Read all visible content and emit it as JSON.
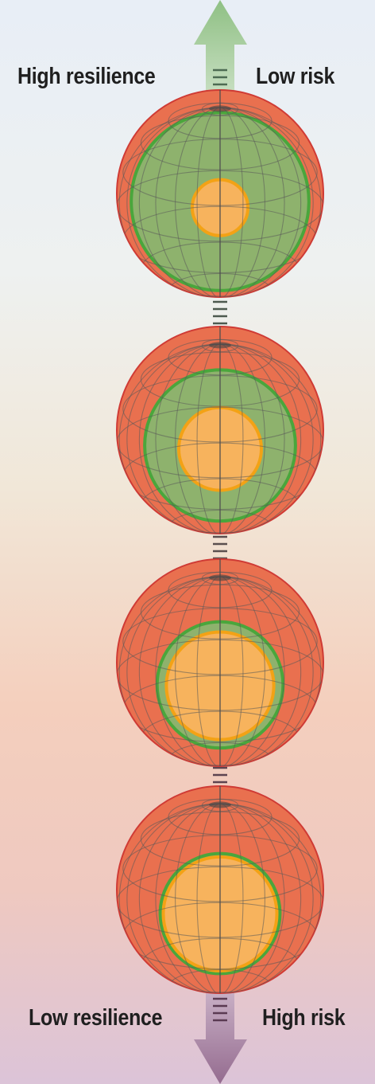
{
  "labels": {
    "top_left": "High resilience",
    "top_right": "Low risk",
    "bottom_left": "Low resilience",
    "bottom_right": "High risk"
  },
  "colors": {
    "risk_red": "#e9704f",
    "risk_red_stroke": "#cf3b35",
    "resilience_green": "#8eb26d",
    "resilience_green_stroke": "#4aa63c",
    "hazard_orange": "#f7b35d",
    "hazard_orange_stroke": "#f3a215",
    "arrow_top": "#94c389",
    "arrow_bottom": "#9b6f95"
  },
  "globes": [
    {
      "name": "globe-1",
      "green_fraction": 0.86,
      "orange_fraction": 0.27
    },
    {
      "name": "globe-2",
      "green_fraction": 0.73,
      "orange_fraction": 0.4
    },
    {
      "name": "globe-3",
      "green_fraction": 0.61,
      "orange_fraction": 0.52
    },
    {
      "name": "globe-4",
      "green_fraction": 0.58,
      "orange_fraction": 0.55
    }
  ]
}
